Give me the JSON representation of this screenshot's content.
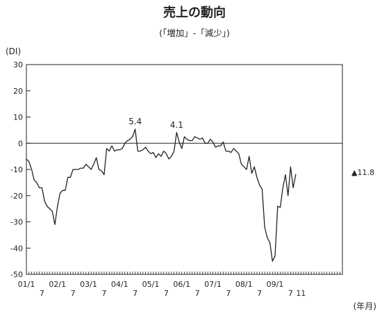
{
  "chart_data": {
    "type": "line",
    "title": "売上の動向",
    "subtitle": "(「増加」-「減少」)",
    "ylabel": "(DI)",
    "xlabel": "(年月)",
    "ylim": [
      -50,
      30
    ],
    "yticks": [
      30,
      20,
      10,
      0,
      -10,
      -20,
      -30,
      -40,
      -50
    ],
    "grid": false,
    "zero_line": true,
    "x_range": [
      0,
      122
    ],
    "x_tick_labels": [
      {
        "pos": 0,
        "label": "01/1"
      },
      {
        "pos": 6,
        "label": "7"
      },
      {
        "pos": 12,
        "label": "02/1"
      },
      {
        "pos": 18,
        "label": "7"
      },
      {
        "pos": 24,
        "label": "03/1"
      },
      {
        "pos": 30,
        "label": "7"
      },
      {
        "pos": 36,
        "label": "04/1"
      },
      {
        "pos": 42,
        "label": "7"
      },
      {
        "pos": 48,
        "label": "05/1"
      },
      {
        "pos": 54,
        "label": "7"
      },
      {
        "pos": 60,
        "label": "06/1"
      },
      {
        "pos": 66,
        "label": "7"
      },
      {
        "pos": 72,
        "label": "07/1"
      },
      {
        "pos": 78,
        "label": "7"
      },
      {
        "pos": 84,
        "label": "08/1"
      },
      {
        "pos": 90,
        "label": "7"
      },
      {
        "pos": 96,
        "label": "09/1"
      },
      {
        "pos": 102,
        "label": "7"
      },
      {
        "pos": 106,
        "label": "11"
      }
    ],
    "series": [
      {
        "values": [
          -6,
          -7,
          -10,
          -14,
          -15,
          -17,
          -17,
          -22,
          -24,
          -25,
          -26,
          -31,
          -24,
          -19,
          -18,
          -18,
          -13,
          -13,
          -10,
          -10,
          -10,
          -9.5,
          -9.5,
          -8,
          -9,
          -10,
          -8,
          -5.5,
          -10,
          -10.5,
          -12,
          -2,
          -3,
          -1,
          -3,
          -2.5,
          -2.5,
          -2,
          0,
          1,
          1.5,
          2.5,
          5.4,
          -3,
          -3,
          -2.5,
          -1.5,
          -3,
          -4,
          -3.5,
          -5.5,
          -4,
          -5,
          -3,
          -4,
          -6,
          -5,
          -3,
          4.1,
          0.5,
          -2,
          2.5,
          1.5,
          1,
          1,
          2.5,
          2,
          1.5,
          2,
          0,
          0,
          1.5,
          0.5,
          -1.5,
          -1,
          -1,
          0.5,
          -3,
          -3,
          -3.5,
          -2,
          -3,
          -4,
          -8,
          -9,
          -10,
          -5,
          -11.5,
          -9,
          -13,
          -16,
          -17.5,
          -32,
          -36,
          -38,
          -45,
          -43,
          -24,
          -24.5,
          -17,
          -12,
          -20,
          -9,
          -17,
          -11.8
        ],
        "color": "#222222"
      }
    ],
    "annotations": [
      {
        "x": 42,
        "y": 5.4,
        "label": "5.4"
      },
      {
        "x": 58,
        "y": 4.1,
        "label": "4.1"
      }
    ],
    "latest_label": "▲11.8"
  }
}
